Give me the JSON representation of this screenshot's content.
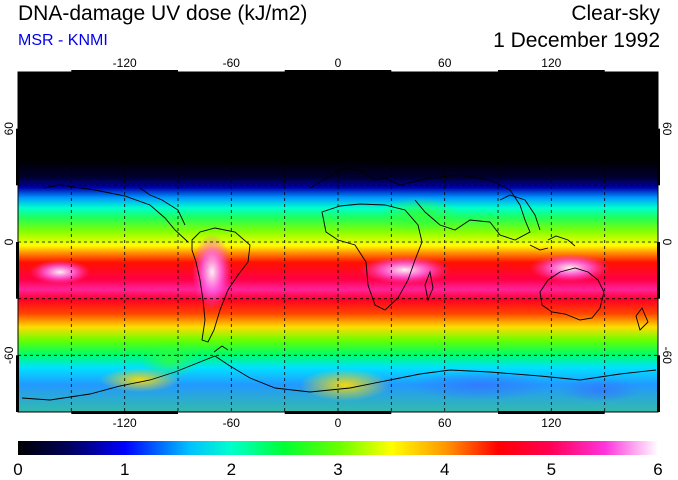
{
  "header": {
    "title": "DNA-damage UV dose (kJ/m2)",
    "source": "MSR - KNMI",
    "condition": "Clear-sky",
    "date": "1 December 1992"
  },
  "colors": {
    "source_text": "#0000ee",
    "graticule": "#000000",
    "coastline": "#000000"
  },
  "map": {
    "lon_range": [
      -180,
      180
    ],
    "lat_range": [
      -90,
      90
    ],
    "lon_ticks": [
      -120,
      -60,
      0,
      60,
      120
    ],
    "lat_ticks": [
      -60,
      0,
      60
    ],
    "lon_tick_labels": [
      "-120",
      "-60",
      "0",
      "60",
      "120"
    ],
    "lat_tick_labels": [
      "-60",
      "0",
      "60"
    ],
    "gridlines": "dashed every 30 degrees"
  },
  "colorbar": {
    "min": 0,
    "max": 6,
    "tick_labels": [
      "0",
      "1",
      "2",
      "3",
      "4",
      "5",
      "6"
    ],
    "color_stops": [
      {
        "value": 0,
        "color": "#000000"
      },
      {
        "value": 0.5,
        "color": "#000060"
      },
      {
        "value": 1,
        "color": "#0000ff"
      },
      {
        "value": 1.6,
        "color": "#00bfff"
      },
      {
        "value": 2,
        "color": "#00ffcc"
      },
      {
        "value": 2.5,
        "color": "#00ff33"
      },
      {
        "value": 3,
        "color": "#66ff00"
      },
      {
        "value": 3.5,
        "color": "#ffff00"
      },
      {
        "value": 4,
        "color": "#ff9900"
      },
      {
        "value": 4.5,
        "color": "#ff0000"
      },
      {
        "value": 5,
        "color": "#ff0055"
      },
      {
        "value": 5.5,
        "color": "#ff33dd"
      },
      {
        "value": 6,
        "color": "#ffffff"
      }
    ]
  }
}
